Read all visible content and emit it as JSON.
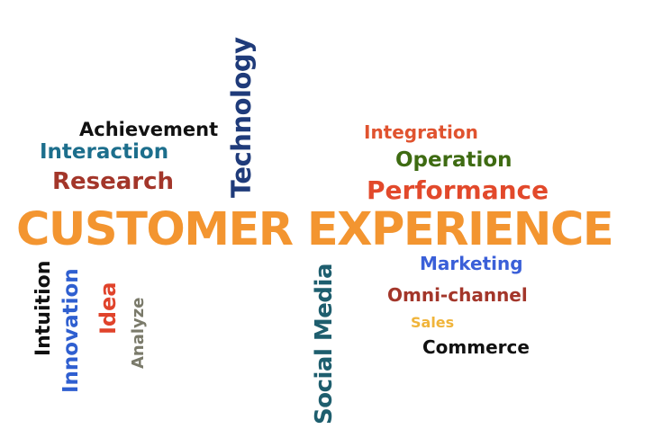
{
  "words": {
    "main": {
      "text": "CUSTOMER EXPERIENCE",
      "color": "#F39530"
    },
    "technology": {
      "text": "Technology",
      "color": "#1F3B7A"
    },
    "achievement": {
      "text": "Achievement",
      "color": "#111111"
    },
    "interaction": {
      "text": "Interaction",
      "color": "#1C6E8C"
    },
    "research": {
      "text": "Research",
      "color": "#A3362A"
    },
    "integration": {
      "text": "Integration",
      "color": "#E0532F"
    },
    "operation": {
      "text": "Operation",
      "color": "#3E6B12"
    },
    "performance": {
      "text": "Performance",
      "color": "#E2492B"
    },
    "intuition": {
      "text": "Intuition",
      "color": "#111111"
    },
    "innovation": {
      "text": "Innovation",
      "color": "#2F5FD0"
    },
    "idea": {
      "text": "Idea",
      "color": "#E0432B"
    },
    "analyze": {
      "text": "Analyze",
      "color": "#7A7A6A"
    },
    "social_media": {
      "text": "Social Media",
      "color": "#1E5E6E"
    },
    "marketing": {
      "text": "Marketing",
      "color": "#3A5FD8"
    },
    "omni_channel": {
      "text": "Omni-channel",
      "color": "#A3362A"
    },
    "sales": {
      "text": "Sales",
      "color": "#F0B43A"
    },
    "commerce": {
      "text": "Commerce",
      "color": "#111111"
    }
  }
}
